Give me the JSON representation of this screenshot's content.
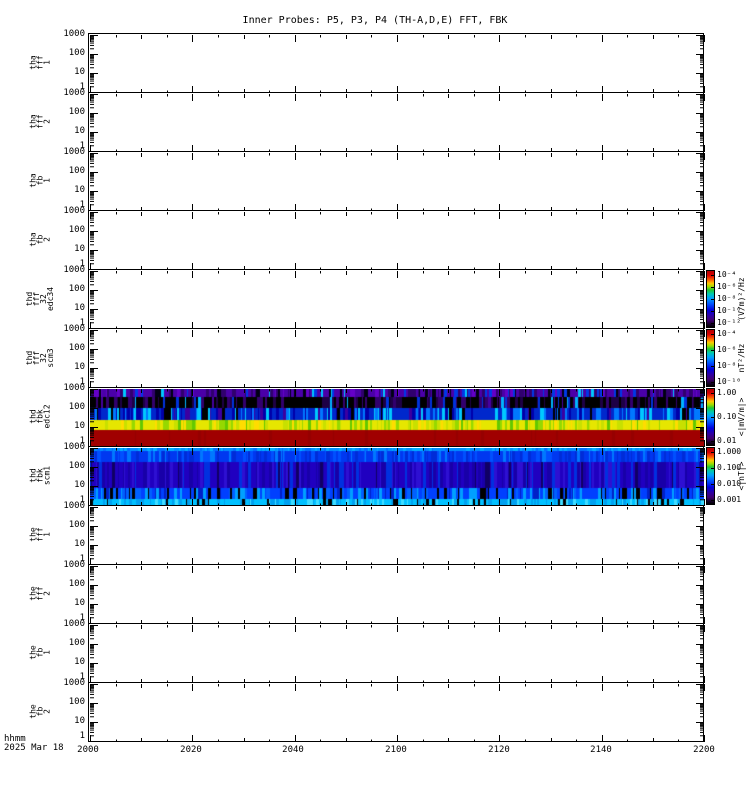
{
  "chart_data": {
    "type": "heatmap",
    "title": "Inner Probes: P5, P3, P4 (TH-A,D,E) FFT, FBK",
    "x_axis": {
      "unit_label": "hhmm",
      "date_label": "2025 Mar 18",
      "tick_labels": [
        "2000",
        "2020",
        "2040",
        "2100",
        "2120",
        "2140",
        "2200"
      ],
      "minor_ticks_minutes": 10
    },
    "y_axis": {
      "scale": "log",
      "tick_labels": [
        "1000",
        "100",
        "10",
        "1"
      ],
      "range": [
        1,
        1000
      ]
    },
    "panels": [
      {
        "id": "tha_fff_1",
        "label_lines": [
          "tha",
          "fff",
          "1"
        ],
        "has_data": false
      },
      {
        "id": "tha_fff_2",
        "label_lines": [
          "tha",
          "fff",
          "2"
        ],
        "has_data": false
      },
      {
        "id": "tha_fb_1",
        "label_lines": [
          "tha",
          "fb",
          "1"
        ],
        "has_data": false
      },
      {
        "id": "tha_fb_2",
        "label_lines": [
          "tha",
          "fb",
          "2"
        ],
        "has_data": false
      },
      {
        "id": "thd_fff_32_edc34",
        "label_lines": [
          "thd",
          "fff",
          "32",
          "edc34"
        ],
        "has_data": false
      },
      {
        "id": "thd_fff_32_scm3",
        "label_lines": [
          "thd",
          "fff",
          "32",
          "scm3"
        ],
        "has_data": false
      },
      {
        "id": "thd_fbk_edc12",
        "label_lines": [
          "thd",
          "fbk",
          "edc12"
        ],
        "has_data": true,
        "bands": [
          {
            "from": 0.0,
            "to": 0.14,
            "freq_hz": [
              380,
              1000
            ],
            "approx_value_mVm": 0.006,
            "palette": [
              [
                "#4a00a8",
                0.5
              ],
              [
                "#30006e",
                0.18
              ],
              [
                "#000014",
                0.12
              ],
              [
                "#0038e6",
                0.1
              ],
              [
                "#00c8ff",
                0.04
              ],
              [
                "#6400c8",
                0.06
              ]
            ]
          },
          {
            "from": 0.14,
            "to": 0.32,
            "freq_hz": [
              110,
              380
            ],
            "approx_value_mVm": 0.002,
            "palette": [
              [
                "#000000",
                0.58
              ],
              [
                "#32006e",
                0.16
              ],
              [
                "#1e0046",
                0.1
              ],
              [
                "#0032dc",
                0.08
              ],
              [
                "#00b4ff",
                0.05
              ],
              [
                "#4600a0",
                0.03
              ]
            ]
          },
          {
            "from": 0.32,
            "to": 0.53,
            "freq_hz": [
              26,
              110
            ],
            "approx_value_mVm": 0.05,
            "palette": [
              [
                "#0028cc",
                0.4
              ],
              [
                "#0000aa",
                0.18
              ],
              [
                "#0078ff",
                0.14
              ],
              [
                "#00c8ff",
                0.12
              ],
              [
                "#000000",
                0.1
              ],
              [
                "#3c00a0",
                0.06
              ]
            ]
          },
          {
            "from": 0.53,
            "to": 0.7,
            "freq_hz": [
              8,
              26
            ],
            "approx_value_mVm": 0.4,
            "palette": [
              [
                "#e6e600",
                0.5
              ],
              [
                "#c8e000",
                0.2
              ],
              [
                "#96d800",
                0.14
              ],
              [
                "#ffdc00",
                0.1
              ],
              [
                "#64c800",
                0.06
              ]
            ]
          },
          {
            "from": 0.7,
            "to": 1.0,
            "freq_hz": [
              1,
              8
            ],
            "approx_value_mVm": 2.0,
            "palette": [
              [
                "#a00000",
                0.92
              ],
              [
                "#960000",
                0.08
              ]
            ]
          }
        ]
      },
      {
        "id": "thd_fbk_scm1",
        "label_lines": [
          "thd",
          "fbk",
          "scm1"
        ],
        "has_data": true,
        "bands": [
          {
            "from": 0.0,
            "to": 0.05,
            "freq_hz": [
              700,
              1000
            ],
            "approx_value_nT": 0.06,
            "palette": [
              [
                "#0090ff",
                0.5
              ],
              [
                "#00b0ff",
                0.28
              ],
              [
                "#0070ff",
                0.22
              ]
            ]
          },
          {
            "from": 0.05,
            "to": 0.24,
            "freq_hz": [
              190,
              700
            ],
            "approx_value_nT": 0.04,
            "palette": [
              [
                "#0038f0",
                0.45
              ],
              [
                "#002cd8",
                0.25
              ],
              [
                "#0050ff",
                0.18
              ],
              [
                "#0078ff",
                0.12
              ]
            ]
          },
          {
            "from": 0.24,
            "to": 0.69,
            "freq_hz": [
              9,
              190
            ],
            "approx_value_nT": 0.008,
            "palette": [
              [
                "#2000c0",
                0.38
              ],
              [
                "#1800a8",
                0.24
              ],
              [
                "#2e10d2",
                0.2
              ],
              [
                "#0030e0",
                0.12
              ],
              [
                "#100064",
                0.06
              ]
            ]
          },
          {
            "from": 0.69,
            "to": 0.88,
            "freq_hz": [
              2.3,
              9
            ],
            "approx_value_nT": 0.025,
            "palette": [
              [
                "#0040ff",
                0.36
              ],
              [
                "#0060ff",
                0.2
              ],
              [
                "#000000",
                0.18
              ],
              [
                "#00a0ff",
                0.14
              ],
              [
                "#0020c8",
                0.12
              ]
            ]
          },
          {
            "from": 0.88,
            "to": 1.0,
            "freq_hz": [
              1,
              2.3
            ],
            "approx_value_nT": 0.06,
            "palette": [
              [
                "#00c0ff",
                0.55
              ],
              [
                "#00a0f0",
                0.2
              ],
              [
                "#000000",
                0.13
              ],
              [
                "#40dcff",
                0.12
              ]
            ]
          }
        ]
      },
      {
        "id": "the_fff_1",
        "label_lines": [
          "the",
          "fff",
          "1"
        ],
        "has_data": false
      },
      {
        "id": "the_fff_2",
        "label_lines": [
          "the",
          "fff",
          "2"
        ],
        "has_data": false
      },
      {
        "id": "the_fb_1",
        "label_lines": [
          "the",
          "fb",
          "1"
        ],
        "has_data": false
      },
      {
        "id": "the_fb_2",
        "label_lines": [
          "the",
          "fb",
          "2"
        ],
        "has_data": false
      }
    ],
    "colorbars": [
      {
        "panel_index": 4,
        "tick_labels": [
          "10⁻⁴",
          "10⁻⁶",
          "10⁻⁸",
          "10⁻¹⁰",
          "10⁻¹²"
        ],
        "unit": "(V/m)²/Hz"
      },
      {
        "panel_index": 5,
        "tick_labels": [
          "10⁻⁴",
          "10⁻⁶",
          "10⁻⁸",
          "10⁻¹⁰"
        ],
        "unit": "nT²/Hz"
      },
      {
        "panel_index": 6,
        "tick_labels": [
          "1.00",
          "0.10",
          "0.01"
        ],
        "unit": "<|mV/m|>"
      },
      {
        "panel_index": 7,
        "tick_labels": [
          "1.000",
          "0.100",
          "0.010",
          "0.001"
        ],
        "unit": "<|nT|>"
      }
    ],
    "colorbar_gradient": [
      "#b40000 0%",
      "#dc0000 8%",
      "#ff6000 16%",
      "#ffc800 22%",
      "#a0dc00 28%",
      "#20c830 34%",
      "#00c8b4 41%",
      "#00a0ff 49%",
      "#0050ff 59%",
      "#0000dc 70%",
      "#3000a0 80%",
      "#400070 88%",
      "#100020 96%",
      "#000000 100%"
    ],
    "colors": {
      "axis": "#000000",
      "background": "#ffffff"
    }
  }
}
